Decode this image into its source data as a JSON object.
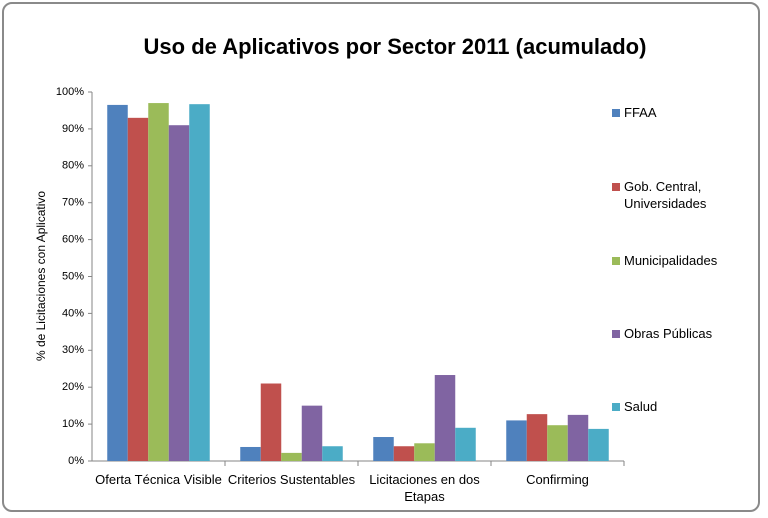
{
  "chart_data": {
    "type": "bar",
    "title": "Uso de Aplicativos por Sector 2011 (acumulado)",
    "y_label": "% de Licitaciones con Aplicativo",
    "categories": [
      "Oferta Técnica Visible",
      "Criterios Sustentables",
      "Licitaciones en dos Etapas",
      "Confirming"
    ],
    "series": [
      {
        "name": "FFAA",
        "color": "#4f81bd",
        "values": [
          96.5,
          3.8,
          6.5,
          11
        ]
      },
      {
        "name": "Gob. Central, Universidades",
        "color": "#c0504d",
        "values": [
          93,
          21,
          4,
          12.7
        ]
      },
      {
        "name": "Municipalidades",
        "color": "#9bbb59",
        "values": [
          97,
          2.2,
          4.8,
          9.7
        ]
      },
      {
        "name": "Obras Públicas",
        "color": "#8064a2",
        "values": [
          91,
          15,
          23.3,
          12.5
        ]
      },
      {
        "name": "Salud",
        "color": "#4bacc6",
        "values": [
          96.7,
          4,
          9,
          8.7
        ]
      }
    ],
    "ylim": [
      0,
      100
    ],
    "yticks": [
      {
        "value": 0,
        "label": "0%"
      },
      {
        "value": 10,
        "label": "10%"
      },
      {
        "value": 20,
        "label": "20%"
      },
      {
        "value": 30,
        "label": "30%"
      },
      {
        "value": 40,
        "label": "40%"
      },
      {
        "value": 50,
        "label": "50%"
      },
      {
        "value": 60,
        "label": "60%"
      },
      {
        "value": 70,
        "label": "70%"
      },
      {
        "value": 80,
        "label": "80%"
      },
      {
        "value": 90,
        "label": "90%"
      },
      {
        "value": 100,
        "label": "100%"
      }
    ],
    "legend": "right"
  }
}
